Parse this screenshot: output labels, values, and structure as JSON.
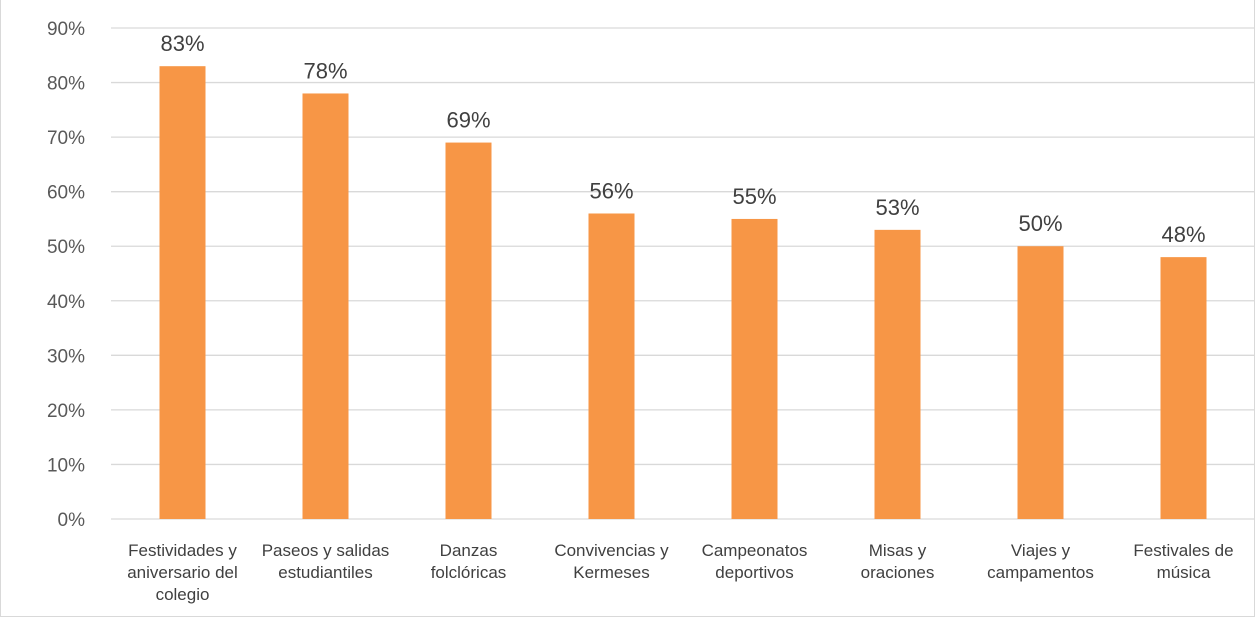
{
  "chart_data": {
    "type": "bar",
    "categories": [
      [
        "Festividades y",
        "aniversario del",
        "colegio"
      ],
      [
        "Paseos y salidas",
        "estudiantiles"
      ],
      [
        "Danzas",
        "folclóricas"
      ],
      [
        "Convivencias y",
        "Kermeses"
      ],
      [
        "Campeonatos",
        "deportivos"
      ],
      [
        "Misas y",
        "oraciones"
      ],
      [
        "Viajes y",
        "campamentos"
      ],
      [
        "Festivales de",
        "música"
      ]
    ],
    "values": [
      83,
      78,
      69,
      56,
      55,
      53,
      50,
      48
    ],
    "data_labels": [
      "83%",
      "78%",
      "69%",
      "56%",
      "55%",
      "53%",
      "50%",
      "48%"
    ],
    "y_ticks": [
      "0%",
      "10%",
      "20%",
      "30%",
      "40%",
      "50%",
      "60%",
      "70%",
      "80%",
      "90%"
    ],
    "ylim": [
      0,
      90
    ],
    "grid": true,
    "bar_color": "#F79646",
    "gridline_color": "#d9d9d9"
  }
}
